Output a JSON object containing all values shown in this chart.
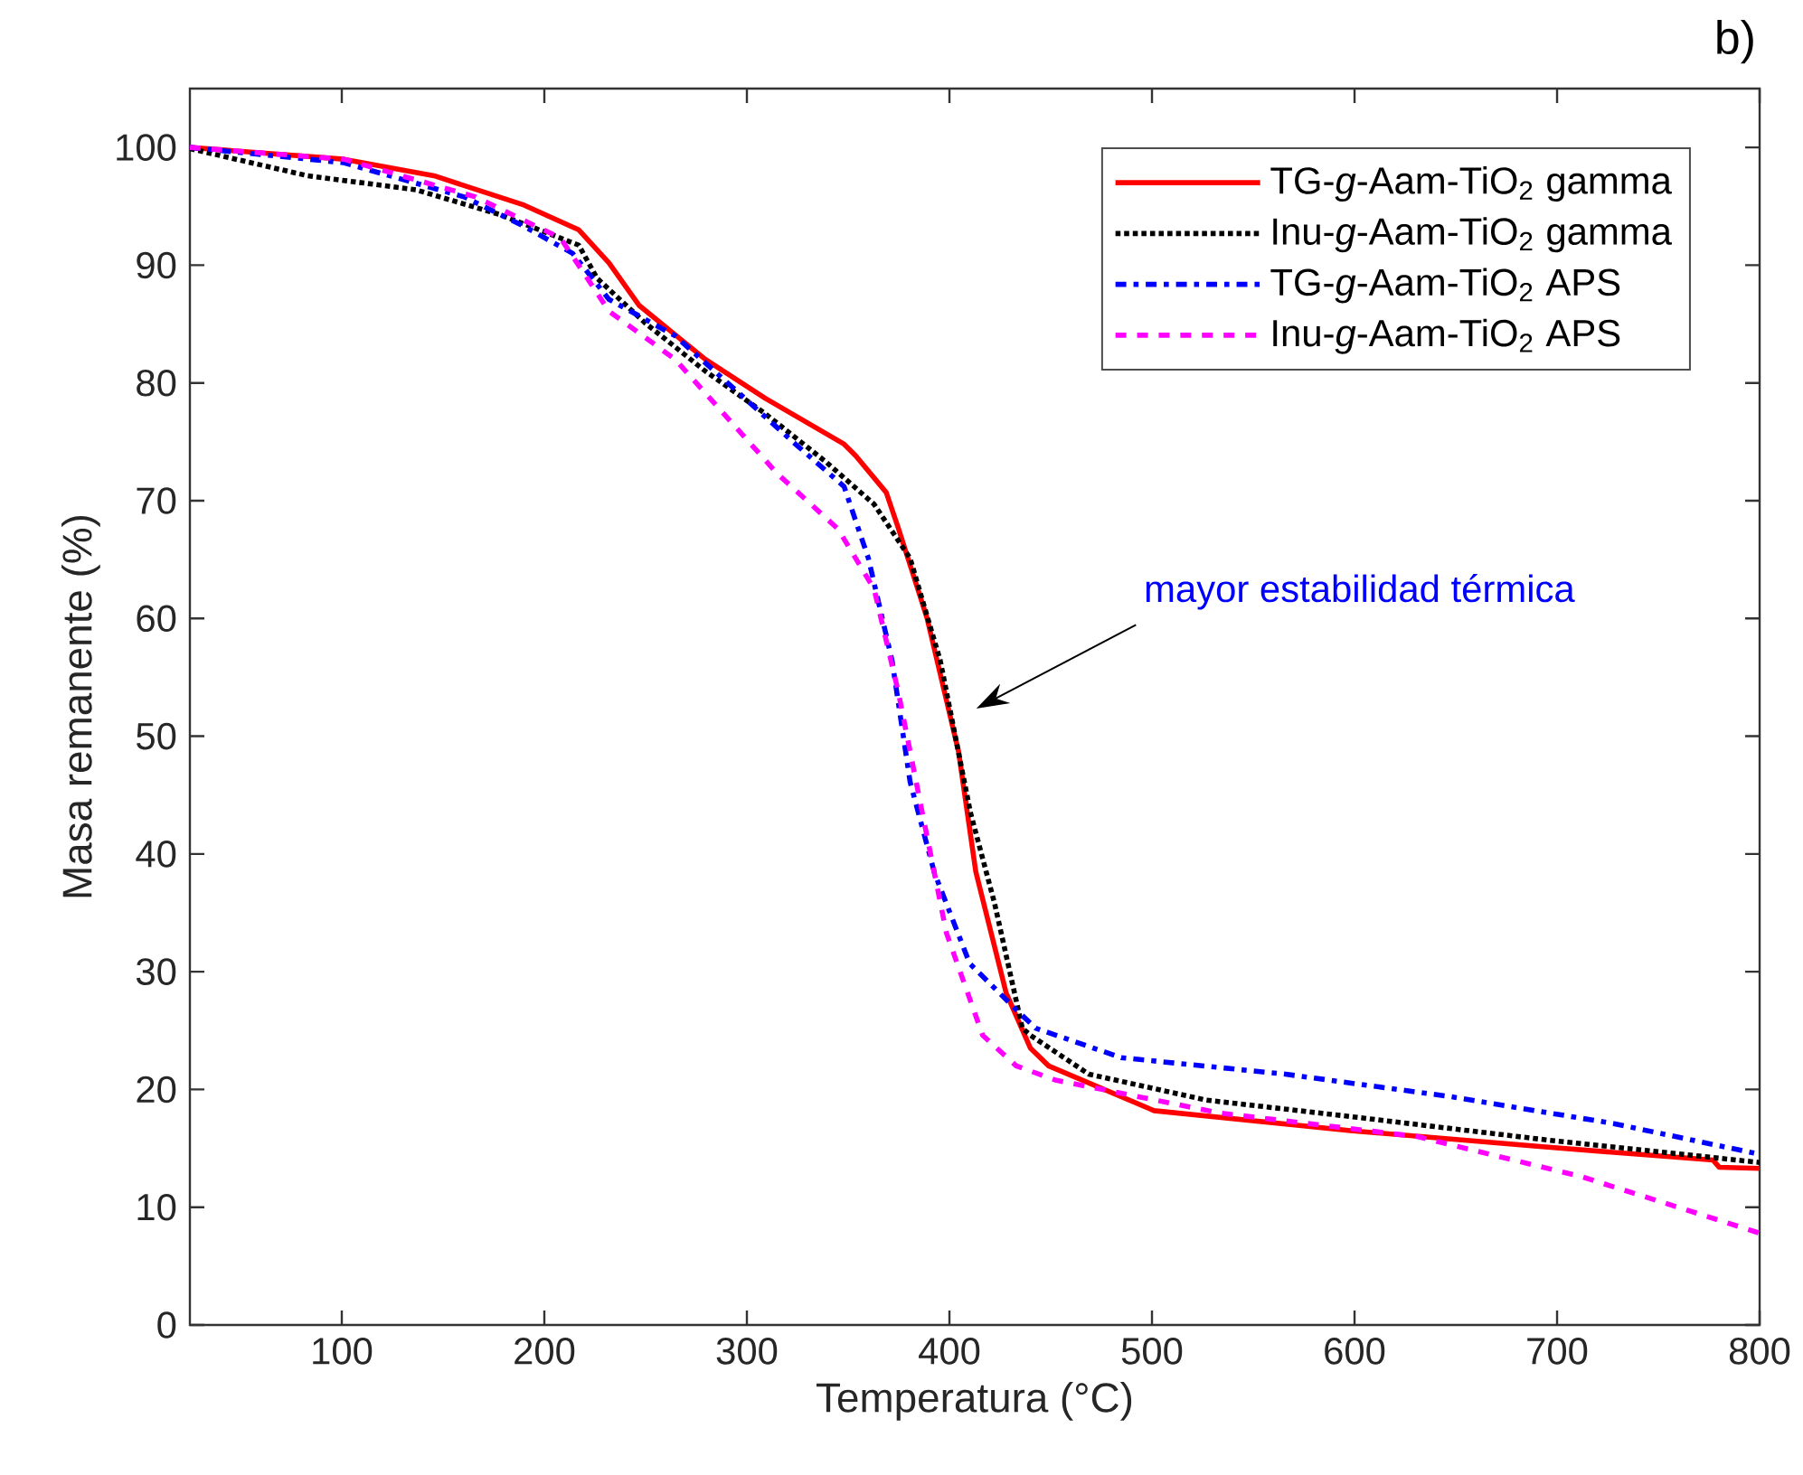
{
  "chart_data": {
    "type": "line",
    "title": "b)",
    "xlabel": "Temperatura (°C)",
    "ylabel": "Masa remanente (%)",
    "xlim": [
      25,
      800
    ],
    "ylim": [
      0,
      105
    ],
    "xticks": [
      100,
      200,
      300,
      400,
      500,
      600,
      700,
      800
    ],
    "yticks": [
      0,
      10,
      20,
      30,
      40,
      50,
      60,
      70,
      80,
      90,
      100
    ],
    "grid": false,
    "legend": "top right",
    "marker": "none",
    "annotations": [
      "mayor estabilidad térmica"
    ],
    "series": [
      {
        "name": "TG-*g*-Aam-TiO$_{2}$ gamma",
        "color": "#ff0000",
        "line_style": "solid",
        "x": [
          25,
          101,
          145.5,
          190,
          217,
          231.9,
          246.7,
          279.5,
          309,
          348,
          353.8,
          368.8,
          374.7,
          389,
          404.5,
          413,
          428,
          440,
          449,
          501,
          598,
          695.5,
          777,
          780,
          800
        ],
        "values": [
          100,
          99.0,
          97.6,
          95.1,
          93.0,
          90.2,
          86.6,
          82.0,
          78.7,
          74.8,
          73.8,
          70.7,
          67.7,
          60,
          48.7,
          38.5,
          28.2,
          23.5,
          22,
          18.2,
          16.5,
          15.1,
          14.0,
          13.4,
          13.3
        ]
      },
      {
        "name": "Inu-*g*-Aam-TiO$_{2}$ gamma",
        "color": "#000000",
        "line_style": "dotted",
        "x": [
          25,
          83,
          136.6,
          178,
          217,
          226,
          249.7,
          279.5,
          309,
          339,
          362.8,
          380.6,
          395.5,
          410.4,
          422.3,
          436,
          440,
          468.8,
          526.8,
          598,
          695.5,
          800
        ],
        "values": [
          99.9,
          97.6,
          96.4,
          94.3,
          91.7,
          88.9,
          85.1,
          81.0,
          77.4,
          73.3,
          69.7,
          65.1,
          56.4,
          43.5,
          35.8,
          25.2,
          24.6,
          21.3,
          19.1,
          17.7,
          15.7,
          13.8
        ]
      },
      {
        "name": "TG-*g*-Aam-TiO$_{2}$ APS",
        "color": "#0000ff",
        "line_style": "dashdot",
        "x": [
          25,
          101,
          160.4,
          190,
          214,
          231.9,
          264.6,
          294.4,
          324,
          348,
          360,
          371.7,
          380.6,
          392.6,
          410,
          434,
          442.6,
          484.8,
          565.9,
          647,
          728,
          800
        ],
        "values": [
          100,
          98.7,
          95.8,
          93.3,
          91.0,
          87.1,
          84.0,
          79.4,
          74.8,
          71.2,
          65.1,
          56.4,
          46.1,
          38.4,
          30.7,
          26.6,
          25.2,
          22.7,
          21.3,
          19.4,
          17.1,
          14.5
        ]
      },
      {
        "name": "Inu-*g*-Aam-TiO$_{2}$ APS",
        "color": "#ff00ff",
        "line_style": "dashed",
        "x": [
          25,
          101,
          166,
          208,
          220,
          231.9,
          264.6,
          315,
          345,
          362.8,
          374.7,
          386.6,
          398.5,
          416.4,
          433,
          452.3,
          533.5,
          630.9,
          712,
          800
        ],
        "values": [
          100,
          99,
          95.8,
          92.3,
          89.2,
          86.1,
          82.0,
          72.3,
          67.6,
          62.5,
          53.8,
          43.5,
          33.3,
          24.6,
          22.0,
          20.8,
          18.0,
          16.0,
          12.6,
          7.8
        ]
      }
    ]
  }
}
